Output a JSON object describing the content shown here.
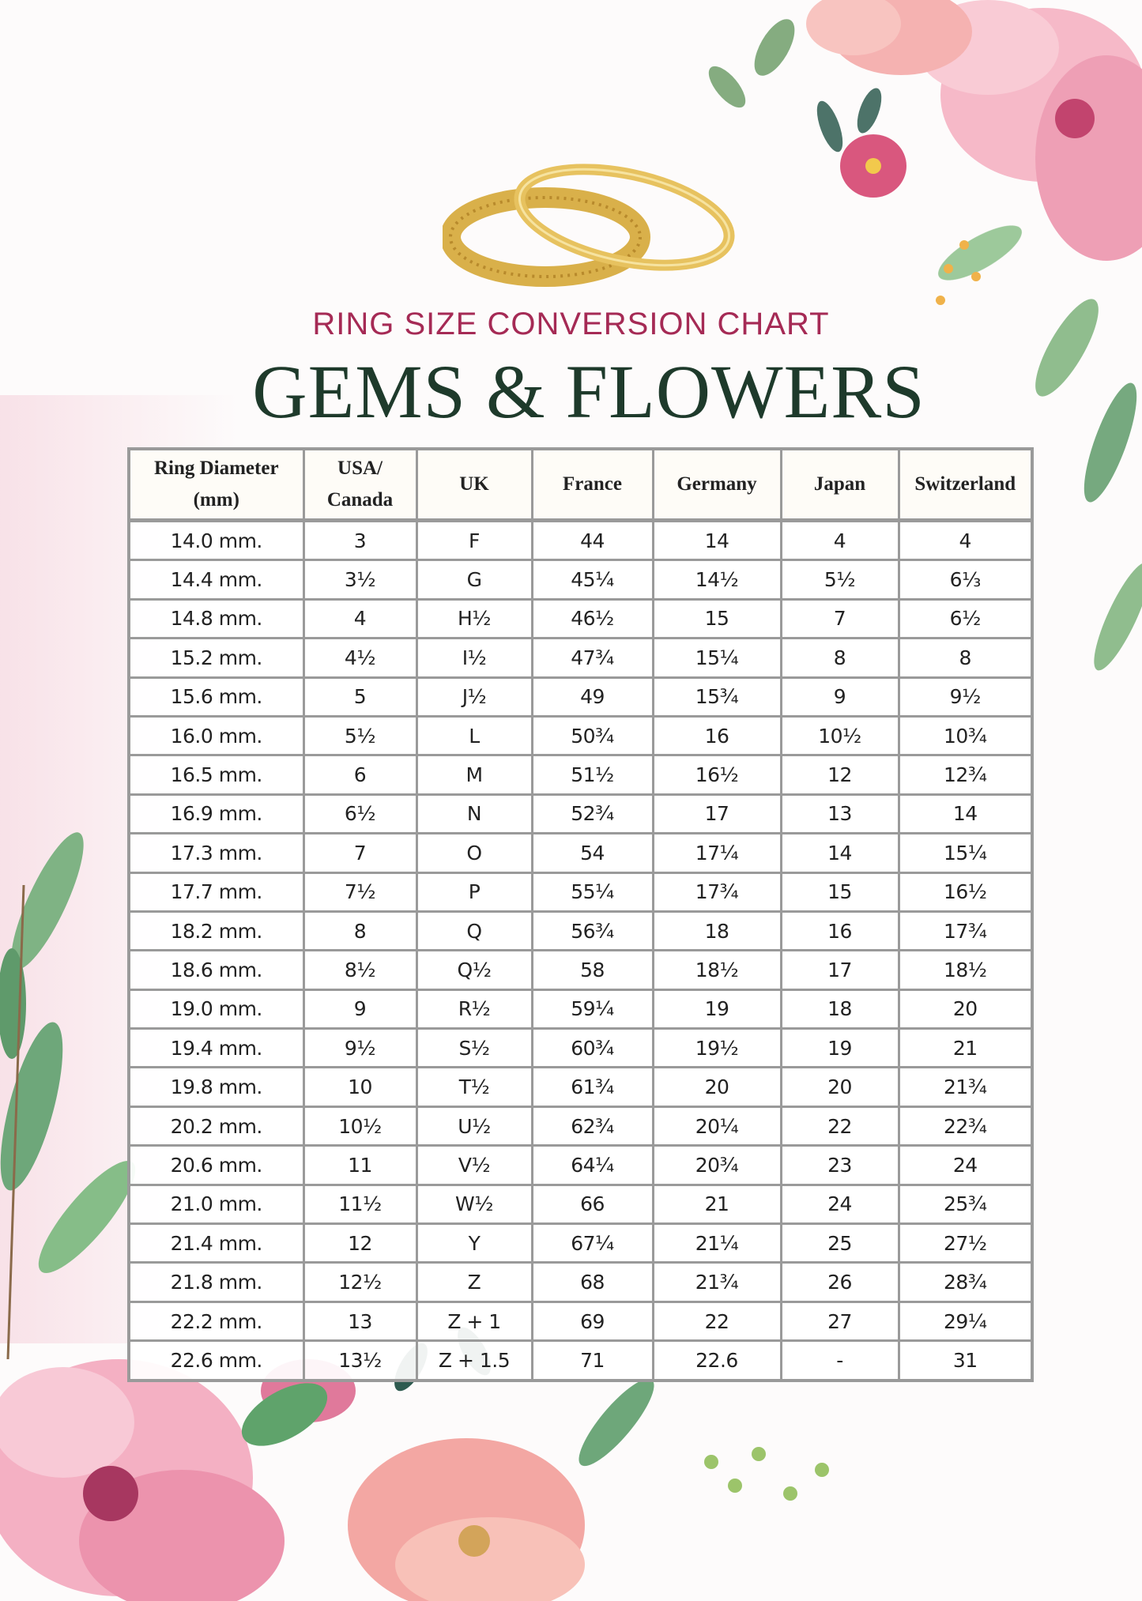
{
  "header": {
    "subtitle": "RING SIZE CONVERSION CHART",
    "title": "GEMS & FLOWERS"
  },
  "colors": {
    "subtitle": "#a52a55",
    "title": "#1e3a2b",
    "table_border": "#9a9a9a"
  },
  "table": {
    "headers": [
      "Ring Diameter (mm)",
      "USA/ Canada",
      "UK",
      "France",
      "Germany",
      "Japan",
      "Switzerland"
    ],
    "rows": [
      [
        "14.0 mm.",
        "3",
        "F",
        "44",
        "14",
        "4",
        "4"
      ],
      [
        "14.4 mm.",
        "3½",
        "G",
        "45¼",
        "14½",
        "5½",
        "6⅓"
      ],
      [
        "14.8 mm.",
        "4",
        "H½",
        "46½",
        "15",
        "7",
        "6½"
      ],
      [
        "15.2 mm.",
        "4½",
        "I½",
        "47¾",
        "15¼",
        "8",
        "8"
      ],
      [
        "15.6 mm.",
        "5",
        "J½",
        "49",
        "15¾",
        "9",
        "9½"
      ],
      [
        "16.0 mm.",
        "5½",
        "L",
        "50¾",
        "16",
        "10½",
        "10¾"
      ],
      [
        "16.5 mm.",
        "6",
        "M",
        "51½",
        "16½",
        "12",
        "12¾"
      ],
      [
        "16.9 mm.",
        "6½",
        "N",
        "52¾",
        "17",
        "13",
        "14"
      ],
      [
        "17.3 mm.",
        "7",
        "O",
        "54",
        "17¼",
        "14",
        "15¼"
      ],
      [
        "17.7 mm.",
        "7½",
        "P",
        "55¼",
        "17¾",
        "15",
        "16½"
      ],
      [
        "18.2 mm.",
        "8",
        "Q",
        "56¾",
        "18",
        "16",
        "17¾"
      ],
      [
        "18.6 mm.",
        "8½",
        "Q½",
        "58",
        "18½",
        "17",
        "18½"
      ],
      [
        "19.0 mm.",
        "9",
        "R½",
        "59¼",
        "19",
        "18",
        "20"
      ],
      [
        "19.4 mm.",
        "9½",
        "S½",
        "60¾",
        "19½",
        "19",
        "21"
      ],
      [
        "19.8 mm.",
        "10",
        "T½",
        "61¾",
        "20",
        "20",
        "21¾"
      ],
      [
        "20.2 mm.",
        "10½",
        "U½",
        "62¾",
        "20¼",
        "22",
        "22¾"
      ],
      [
        "20.6 mm.",
        "11",
        "V½",
        "64¼",
        "20¾",
        "23",
        "24"
      ],
      [
        "21.0 mm.",
        "11½",
        "W½",
        "66",
        "21",
        "24",
        "25¾"
      ],
      [
        "21.4 mm.",
        "12",
        "Y",
        "67¼",
        "21¼",
        "25",
        "27½"
      ],
      [
        "21.8 mm.",
        "12½",
        "Z",
        "68",
        "21¾",
        "26",
        "28¾"
      ],
      [
        "22.2 mm.",
        "13",
        "Z + 1",
        "69",
        "22",
        "27",
        "29¼"
      ],
      [
        "22.6 mm.",
        "13½",
        "Z + 1.5",
        "71",
        "22.6",
        "-",
        "31"
      ]
    ]
  },
  "images": {
    "rings": "gold-rings-icon",
    "flowers": "floral-decoration"
  }
}
